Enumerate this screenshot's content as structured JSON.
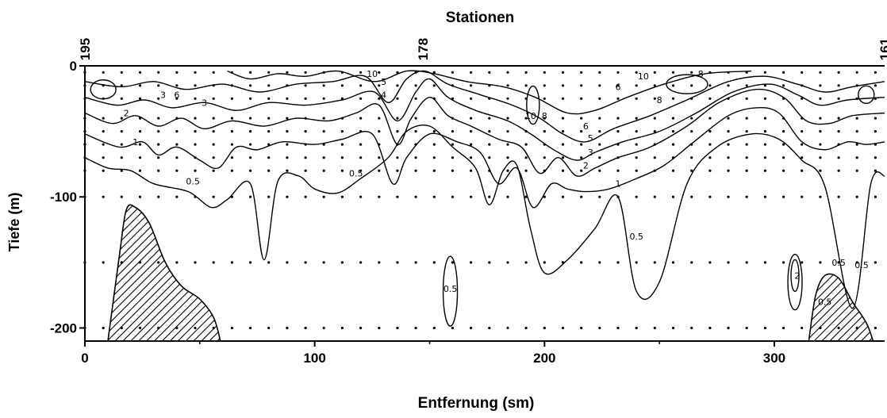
{
  "chart_data": {
    "type": "contour",
    "title": "Stationen",
    "xlabel": "Entfernung (sm)",
    "ylabel": "Tiefe (m)",
    "xlim": [
      0,
      348
    ],
    "ylim": [
      -210,
      0
    ],
    "x_ticks": [
      "0",
      "100",
      "200",
      "300"
    ],
    "x_tick_values": [
      0,
      100,
      200,
      300
    ],
    "y_ticks": [
      "0",
      "-100",
      "-200"
    ],
    "y_tick_values": [
      0,
      -100,
      -200
    ],
    "stations": [
      {
        "label": "195",
        "x": 0
      },
      {
        "label": "178",
        "x": 147
      },
      {
        "label": "161",
        "x": 348
      }
    ],
    "sample_depths": [
      -5,
      -15,
      -25,
      -40,
      -50,
      -60,
      -70,
      -80,
      -100,
      -150,
      -200
    ],
    "sample_spacing_sm": 8,
    "contour_levels": [
      "0.5",
      "1",
      "2",
      "3",
      "4",
      "5",
      "6",
      "8",
      "10"
    ],
    "isolines": [
      {
        "label": "0.5",
        "points": [
          [
            0,
            -70
          ],
          [
            10,
            -78
          ],
          [
            20,
            -80
          ],
          [
            30,
            -90
          ],
          [
            45,
            -96
          ],
          [
            55,
            -108
          ],
          [
            62,
            -102
          ],
          [
            72,
            -90
          ],
          [
            78,
            -148
          ],
          [
            84,
            -88
          ],
          [
            93,
            -84
          ],
          [
            100,
            -94
          ],
          [
            110,
            -97
          ],
          [
            120,
            -86
          ],
          [
            132,
            -70
          ],
          [
            140,
            -50
          ],
          [
            150,
            -46
          ],
          [
            160,
            -62
          ],
          [
            170,
            -78
          ],
          [
            176,
            -106
          ],
          [
            182,
            -80
          ],
          [
            188,
            -76
          ],
          [
            194,
            -125
          ],
          [
            200,
            -158
          ],
          [
            210,
            -148
          ],
          [
            222,
            -124
          ],
          [
            232,
            -100
          ],
          [
            240,
            -172
          ],
          [
            250,
            -165
          ],
          [
            262,
            -90
          ],
          [
            275,
            -62
          ],
          [
            290,
            -52
          ],
          [
            302,
            -56
          ],
          [
            312,
            -72
          ],
          [
            322,
            -92
          ],
          [
            334,
            -185
          ],
          [
            342,
            -90
          ],
          [
            348,
            -84
          ]
        ]
      },
      {
        "label": "1",
        "points": [
          [
            0,
            -52
          ],
          [
            15,
            -62
          ],
          [
            25,
            -58
          ],
          [
            32,
            -68
          ],
          [
            40,
            -62
          ],
          [
            50,
            -72
          ],
          [
            58,
            -78
          ],
          [
            66,
            -62
          ],
          [
            75,
            -64
          ],
          [
            86,
            -58
          ],
          [
            100,
            -60
          ],
          [
            112,
            -56
          ],
          [
            125,
            -52
          ],
          [
            134,
            -90
          ],
          [
            140,
            -70
          ],
          [
            150,
            -52
          ],
          [
            162,
            -58
          ],
          [
            172,
            -66
          ],
          [
            180,
            -90
          ],
          [
            188,
            -78
          ],
          [
            195,
            -108
          ],
          [
            203,
            -90
          ],
          [
            210,
            -94
          ],
          [
            218,
            -96
          ],
          [
            228,
            -94
          ],
          [
            240,
            -86
          ],
          [
            252,
            -76
          ],
          [
            265,
            -58
          ],
          [
            280,
            -38
          ],
          [
            292,
            -32
          ],
          [
            302,
            -36
          ],
          [
            312,
            -58
          ],
          [
            322,
            -64
          ],
          [
            332,
            -58
          ],
          [
            340,
            -60
          ],
          [
            348,
            -58
          ]
        ]
      },
      {
        "label": "2",
        "points": [
          [
            0,
            -36
          ],
          [
            12,
            -44
          ],
          [
            22,
            -38
          ],
          [
            32,
            -46
          ],
          [
            42,
            -40
          ],
          [
            52,
            -48
          ],
          [
            64,
            -42
          ],
          [
            78,
            -46
          ],
          [
            92,
            -40
          ],
          [
            106,
            -42
          ],
          [
            118,
            -36
          ],
          [
            128,
            -30
          ],
          [
            136,
            -60
          ],
          [
            142,
            -40
          ],
          [
            150,
            -24
          ],
          [
            158,
            -38
          ],
          [
            168,
            -46
          ],
          [
            180,
            -56
          ],
          [
            190,
            -62
          ],
          [
            198,
            -82
          ],
          [
            206,
            -70
          ],
          [
            214,
            -84
          ],
          [
            222,
            -78
          ],
          [
            232,
            -70
          ],
          [
            246,
            -62
          ],
          [
            262,
            -46
          ],
          [
            276,
            -28
          ],
          [
            292,
            -18
          ],
          [
            304,
            -24
          ],
          [
            314,
            -42
          ],
          [
            324,
            -44
          ],
          [
            334,
            -38
          ],
          [
            348,
            -36
          ]
        ]
      },
      {
        "label": "3",
        "points": [
          [
            0,
            -24
          ],
          [
            14,
            -30
          ],
          [
            26,
            -26
          ],
          [
            38,
            -32
          ],
          [
            52,
            -28
          ],
          [
            66,
            -34
          ],
          [
            80,
            -28
          ],
          [
            96,
            -30
          ],
          [
            112,
            -26
          ],
          [
            126,
            -20
          ],
          [
            136,
            -42
          ],
          [
            144,
            -20
          ],
          [
            150,
            -10
          ],
          [
            158,
            -24
          ],
          [
            170,
            -34
          ],
          [
            184,
            -42
          ],
          [
            194,
            -52
          ],
          [
            204,
            -64
          ],
          [
            214,
            -72
          ],
          [
            222,
            -66
          ],
          [
            234,
            -58
          ],
          [
            250,
            -50
          ],
          [
            266,
            -36
          ],
          [
            282,
            -20
          ],
          [
            298,
            -14
          ],
          [
            310,
            -22
          ],
          [
            320,
            -30
          ],
          [
            332,
            -26
          ],
          [
            348,
            -24
          ]
        ]
      },
      {
        "label": "5",
        "points": [
          [
            0,
            -12
          ],
          [
            16,
            -16
          ],
          [
            30,
            -12
          ],
          [
            44,
            -18
          ],
          [
            60,
            -14
          ],
          [
            76,
            -20
          ],
          [
            92,
            -14
          ],
          [
            108,
            -12
          ],
          [
            122,
            -8
          ],
          [
            132,
            -28
          ],
          [
            140,
            -10
          ],
          [
            148,
            -4
          ],
          [
            158,
            -14
          ],
          [
            172,
            -22
          ],
          [
            186,
            -30
          ],
          [
            198,
            -40
          ],
          [
            208,
            -52
          ],
          [
            218,
            -58
          ],
          [
            230,
            -48
          ],
          [
            246,
            -38
          ],
          [
            262,
            -26
          ],
          [
            280,
            -12
          ],
          [
            296,
            -8
          ],
          [
            310,
            -14
          ],
          [
            322,
            -20
          ],
          [
            334,
            -16
          ],
          [
            348,
            -12
          ]
        ]
      },
      {
        "label": "10",
        "points": [
          [
            62,
            -4
          ],
          [
            72,
            -10
          ],
          [
            84,
            -6
          ],
          [
            96,
            -8
          ],
          [
            110,
            -4
          ],
          [
            126,
            -12
          ],
          [
            140,
            -4
          ],
          [
            152,
            -6
          ],
          [
            166,
            -12
          ],
          [
            182,
            -16
          ],
          [
            196,
            -24
          ],
          [
            210,
            -36
          ],
          [
            222,
            -34
          ],
          [
            236,
            -24
          ],
          [
            252,
            -14
          ],
          [
            270,
            -6
          ],
          [
            290,
            -4
          ]
        ]
      }
    ],
    "point_labels": [
      {
        "text": "0.5",
        "x": 47,
        "y": -88
      },
      {
        "text": "0.5",
        "x": 118,
        "y": -82
      },
      {
        "text": "0.5",
        "x": 240,
        "y": -130
      },
      {
        "text": "0.5",
        "x": 159,
        "y": -170
      },
      {
        "text": "0.5",
        "x": 322,
        "y": -180
      },
      {
        "text": "0.5",
        "x": 328,
        "y": -150
      },
      {
        "text": "0.5",
        "x": 338,
        "y": -152
      },
      {
        "text": "1",
        "x": 22,
        "y": -58
      },
      {
        "text": "1",
        "x": 232,
        "y": -90
      },
      {
        "text": "2",
        "x": 18,
        "y": -36
      },
      {
        "text": "2",
        "x": 218,
        "y": -76
      },
      {
        "text": "2",
        "x": 310,
        "y": -160
      },
      {
        "text": "3",
        "x": 52,
        "y": -28
      },
      {
        "text": "3",
        "x": 34,
        "y": -22
      },
      {
        "text": "3",
        "x": 220,
        "y": -66
      },
      {
        "text": "4",
        "x": 130,
        "y": -22
      },
      {
        "text": "5",
        "x": 130,
        "y": -12
      },
      {
        "text": "5",
        "x": 220,
        "y": -55
      },
      {
        "text": "6",
        "x": 40,
        "y": -22
      },
      {
        "text": "6",
        "x": 218,
        "y": -46
      },
      {
        "text": "6",
        "x": 232,
        "y": -16
      },
      {
        "text": "8",
        "x": 200,
        "y": -38
      },
      {
        "text": "8",
        "x": 250,
        "y": -26
      },
      {
        "text": "8",
        "x": 268,
        "y": -6
      },
      {
        "text": "10",
        "x": 125,
        "y": -6
      },
      {
        "text": "10",
        "x": 194,
        "y": -38
      },
      {
        "text": "10",
        "x": 243,
        "y": -8
      }
    ],
    "bottom_topography": [
      {
        "points": [
          [
            10,
            -210
          ],
          [
            15,
            -145
          ],
          [
            18,
            -110
          ],
          [
            22,
            -108
          ],
          [
            28,
            -120
          ],
          [
            35,
            -150
          ],
          [
            42,
            -168
          ],
          [
            50,
            -178
          ],
          [
            56,
            -192
          ],
          [
            59,
            -210
          ]
        ]
      },
      {
        "points": [
          [
            315,
            -210
          ],
          [
            318,
            -175
          ],
          [
            322,
            -160
          ],
          [
            328,
            -162
          ],
          [
            334,
            -180
          ],
          [
            340,
            -196
          ],
          [
            343,
            -210
          ]
        ]
      }
    ],
    "grid": false
  }
}
